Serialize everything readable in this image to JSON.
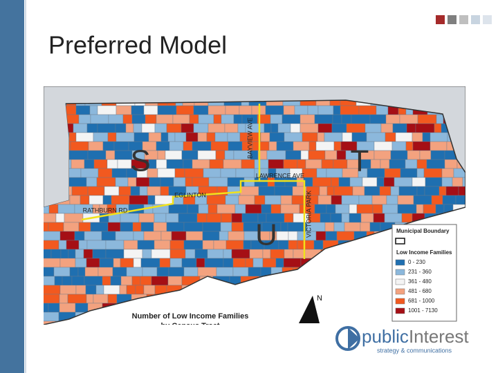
{
  "header": {
    "title": "Preferred Model"
  },
  "map": {
    "road_labels": [
      "BAYVIEW AVE",
      "LAWRENCE AVE",
      "EGLINTON",
      "RATHBURN RD",
      "VICTORIA PARK"
    ],
    "zone_labels": [
      "S",
      "T",
      "U"
    ],
    "title_lines": [
      "Number of Low Income Families",
      "by Census Tract"
    ],
    "north": "N",
    "legend": {
      "boundary_title": "Municipal Boundary",
      "title": "Low Income Families",
      "items": [
        {
          "label": "0 - 230",
          "color": "#1f6fb0"
        },
        {
          "label": "231 - 360",
          "color": "#8cb8dc"
        },
        {
          "label": "361 - 480",
          "color": "#f4f4f4"
        },
        {
          "label": "481 - 680",
          "color": "#f3a27f"
        },
        {
          "label": "681 - 1000",
          "color": "#f2591f"
        },
        {
          "label": "1001 - 7130",
          "color": "#a50f15"
        }
      ]
    }
  },
  "logo": {
    "name_part1": "public",
    "name_part2": "Interest",
    "tagline": "strategy & communications"
  }
}
